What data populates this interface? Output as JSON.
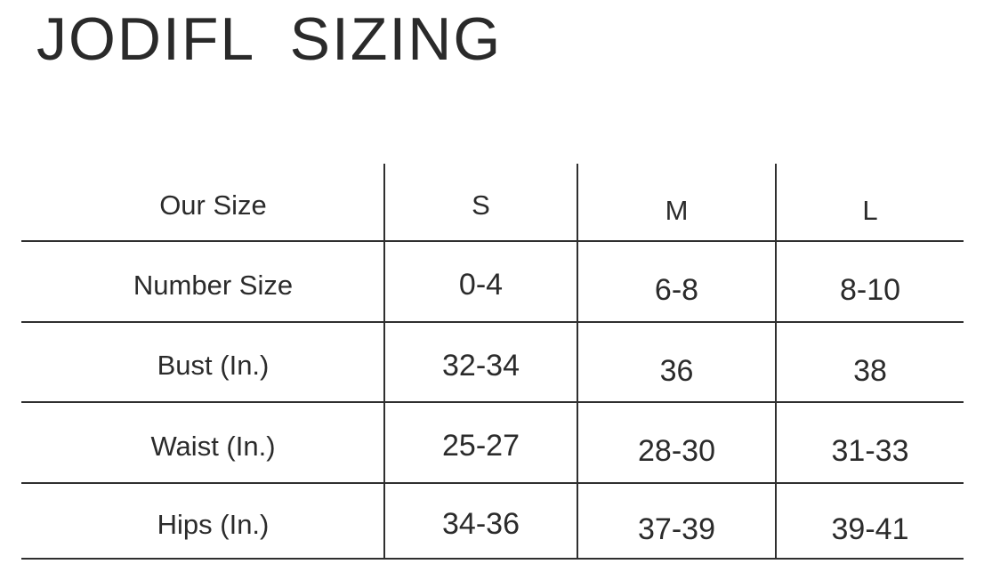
{
  "colors": {
    "background": "#ffffff",
    "text": "#2b2b2b",
    "line": "#2f2f2f",
    "title": "#2a2a2a"
  },
  "title": {
    "text": "JODIFL SIZING"
  },
  "table": {
    "columns": [
      "Our Size",
      "S",
      "M",
      "L"
    ],
    "rows": [
      {
        "label": "Number Size",
        "values": [
          "0-4",
          "6-8",
          "8-10"
        ]
      },
      {
        "label": "Bust (In.)",
        "values": [
          "32-34",
          "36",
          "38"
        ]
      },
      {
        "label": "Waist (In.)",
        "values": [
          "25-27",
          "28-30",
          "31-33"
        ]
      },
      {
        "label": "Hips (In.)",
        "values": [
          "34-36",
          "37-39",
          "39-41"
        ]
      }
    ]
  },
  "chart_data": {
    "type": "table",
    "title": "JODIFL SIZING",
    "columns": [
      "Our Size",
      "S",
      "M",
      "L"
    ],
    "rows": [
      [
        "Number Size",
        "0-4",
        "6-8",
        "8-10"
      ],
      [
        "Bust (In.)",
        "32-34",
        "36",
        "38"
      ],
      [
        "Waist (In.)",
        "25-27",
        "28-30",
        "31-33"
      ],
      [
        "Hips (In.)",
        "34-36",
        "37-39",
        "39-41"
      ]
    ],
    "layout": {
      "grid": "ruled table, no outer left/right border",
      "legend": "none"
    }
  }
}
